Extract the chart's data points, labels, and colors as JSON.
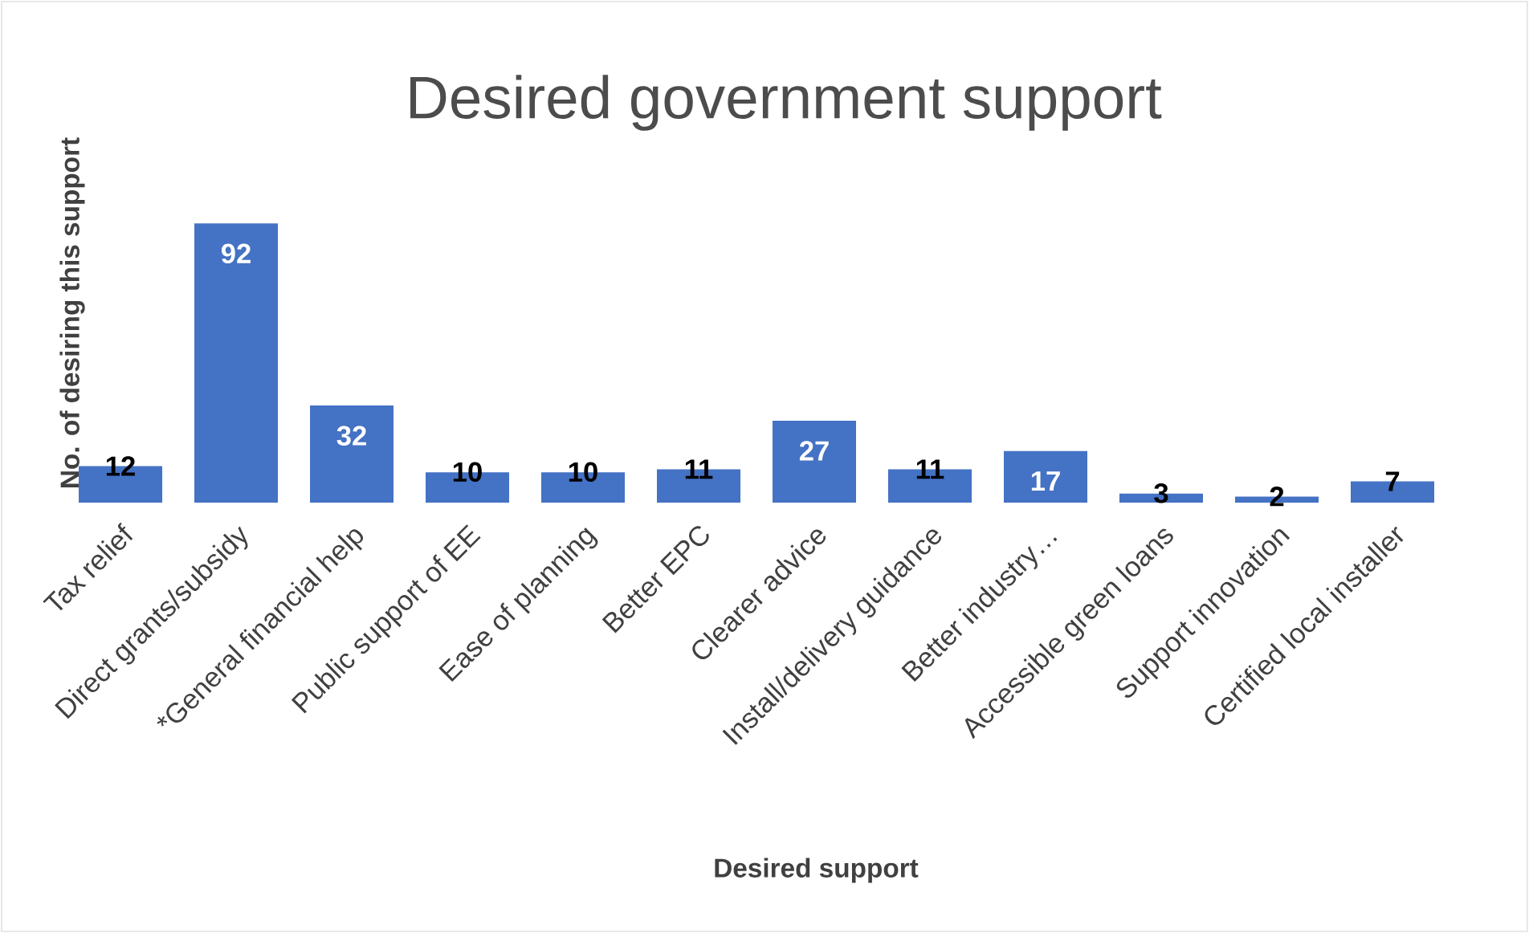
{
  "chart_data": {
    "type": "bar",
    "title": "Desired government support",
    "xlabel": "Desired support",
    "ylabel": "No. of desiring this support",
    "categories": [
      "Tax relief",
      "Direct grants/subsidy",
      "*General financial help",
      "Public support of EE",
      "Ease of planning",
      "Better EPC",
      "Clearer advice",
      "Install/delivery guidance",
      "Better industry…",
      "Accessible green loans",
      "Support innovation",
      "Certified local installer"
    ],
    "values": [
      12,
      92,
      32,
      10,
      10,
      11,
      27,
      11,
      17,
      3,
      2,
      7
    ],
    "color": "#4472c4",
    "data_labels": true
  }
}
